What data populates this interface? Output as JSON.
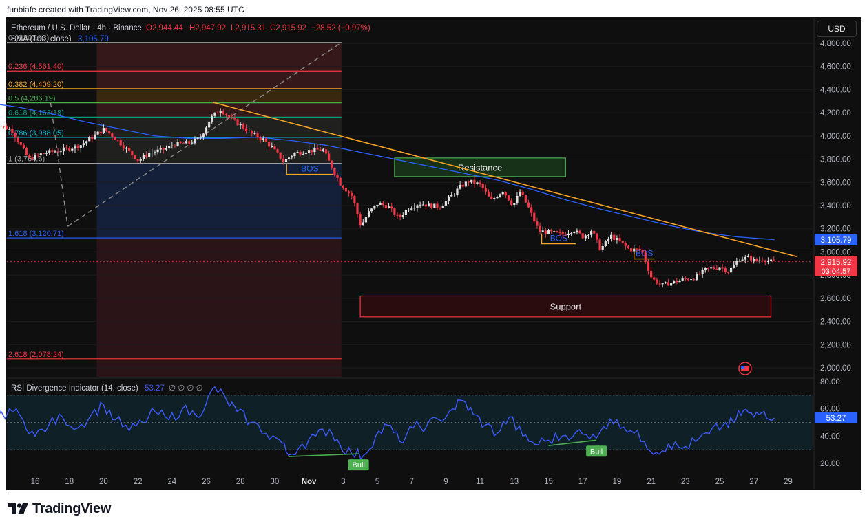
{
  "attribution": "funbiafe created with TradingView.com, Nov 26, 2025 08:55 UTC",
  "brand": "TradingView",
  "currency_button": "USD",
  "legend": {
    "symbol": "Ethereum / U.S. Dollar · 4h · Binance",
    "open": "O2,944.44",
    "high": "H2,947.92",
    "low": "L2,915.31",
    "close": "C2,915.92",
    "change": "−28.52 (−0.97%)",
    "sma_label": "SMA (100, close)",
    "sma_value": "3,105.79"
  },
  "rsi_legend": {
    "label": "RSI Divergence Indicator (14, close)",
    "value": "53.27",
    "extras": "∅ ∅ ∅ ∅"
  },
  "price_badges": {
    "sma": "3,105.79",
    "last": "2,915.92",
    "countdown": "03:04:57",
    "rsi": "53.27"
  },
  "colors": {
    "up": "#e0e0e0",
    "down": "#f23645",
    "sma": "#2962ff",
    "rsi": "#3d5afe",
    "trend": "#f7a325",
    "bull": "#4caf50"
  },
  "chart_data": [
    {
      "type": "candlestick",
      "title": "Ethereum / U.S. Dollar · 4h · Binance",
      "x_tick_labels": [
        "16",
        "18",
        "20",
        "22",
        "24",
        "26",
        "28",
        "30",
        "Nov",
        "3",
        "5",
        "7",
        "9",
        "11",
        "13",
        "15",
        "17",
        "19",
        "21",
        "23",
        "25",
        "27",
        "29"
      ],
      "y_tick_labels": [
        "4,800.00",
        "4,600.00",
        "4,400.00",
        "4,200.00",
        "4,000.00",
        "3,800.00",
        "3,600.00",
        "3,400.00",
        "3,200.00",
        "3,000.00",
        "2,800.00",
        "2,600.00",
        "2,400.00",
        "2,200.00",
        "2,000.00"
      ],
      "ylim": [
        1920,
        4890
      ],
      "price_path": [
        {
          "d": 13.5,
          "p": 4130
        },
        {
          "d": 14.8,
          "p": 4050
        },
        {
          "d": 15.8,
          "p": 3800
        },
        {
          "d": 16.6,
          "p": 3850
        },
        {
          "d": 17.8,
          "p": 3880
        },
        {
          "d": 18.8,
          "p": 3920
        },
        {
          "d": 19.8,
          "p": 4020
        },
        {
          "d": 20.2,
          "p": 4060
        },
        {
          "d": 21.0,
          "p": 3960
        },
        {
          "d": 21.4,
          "p": 3900
        },
        {
          "d": 22.2,
          "p": 3790
        },
        {
          "d": 22.8,
          "p": 3850
        },
        {
          "d": 23.8,
          "p": 3890
        },
        {
          "d": 24.3,
          "p": 3930
        },
        {
          "d": 25.2,
          "p": 3940
        },
        {
          "d": 25.8,
          "p": 3980
        },
        {
          "d": 26.4,
          "p": 4150
        },
        {
          "d": 27.0,
          "p": 4230
        },
        {
          "d": 27.5,
          "p": 4160
        },
        {
          "d": 28.2,
          "p": 4090
        },
        {
          "d": 28.8,
          "p": 4020
        },
        {
          "d": 29.5,
          "p": 3970
        },
        {
          "d": 30.0,
          "p": 3900
        },
        {
          "d": 30.7,
          "p": 3780
        },
        {
          "d": 31.3,
          "p": 3850
        },
        {
          "d": 32.0,
          "p": 3870
        },
        {
          "d": 32.6,
          "p": 3880
        },
        {
          "d": 33.0,
          "p": 3880
        },
        {
          "d": 33.4,
          "p": 3760
        },
        {
          "d": 34.0,
          "p": 3590
        },
        {
          "d": 34.7,
          "p": 3480
        },
        {
          "d": 35.2,
          "p": 3220
        },
        {
          "d": 35.6,
          "p": 3330
        },
        {
          "d": 36.2,
          "p": 3420
        },
        {
          "d": 36.8,
          "p": 3390
        },
        {
          "d": 37.4,
          "p": 3290
        },
        {
          "d": 38.0,
          "p": 3380
        },
        {
          "d": 38.6,
          "p": 3420
        },
        {
          "d": 39.2,
          "p": 3400
        },
        {
          "d": 39.8,
          "p": 3390
        },
        {
          "d": 40.4,
          "p": 3470
        },
        {
          "d": 41.0,
          "p": 3560
        },
        {
          "d": 41.5,
          "p": 3610
        },
        {
          "d": 42.2,
          "p": 3580
        },
        {
          "d": 42.8,
          "p": 3440
        },
        {
          "d": 43.5,
          "p": 3530
        },
        {
          "d": 44.1,
          "p": 3400
        },
        {
          "d": 44.5,
          "p": 3520
        },
        {
          "d": 45.0,
          "p": 3380
        },
        {
          "d": 45.6,
          "p": 3180
        },
        {
          "d": 46.2,
          "p": 3170
        },
        {
          "d": 47.0,
          "p": 3150
        },
        {
          "d": 47.6,
          "p": 3190
        },
        {
          "d": 48.2,
          "p": 3130
        },
        {
          "d": 48.7,
          "p": 3190
        },
        {
          "d": 49.2,
          "p": 3020
        },
        {
          "d": 49.8,
          "p": 3140
        },
        {
          "d": 50.4,
          "p": 3080
        },
        {
          "d": 50.9,
          "p": 3020
        },
        {
          "d": 51.6,
          "p": 3020
        },
        {
          "d": 52.2,
          "p": 2770
        },
        {
          "d": 52.8,
          "p": 2710
        },
        {
          "d": 53.4,
          "p": 2740
        },
        {
          "d": 54.0,
          "p": 2760
        },
        {
          "d": 54.7,
          "p": 2780
        },
        {
          "d": 55.4,
          "p": 2850
        },
        {
          "d": 56.2,
          "p": 2870
        },
        {
          "d": 56.7,
          "p": 2830
        },
        {
          "d": 57.3,
          "p": 2940
        },
        {
          "d": 57.9,
          "p": 2950
        },
        {
          "d": 58.3,
          "p": 2920
        },
        {
          "d": 58.7,
          "p": 2940
        },
        {
          "d": 59.2,
          "p": 2916
        }
      ],
      "sma_100": [
        {
          "d": 13.5,
          "p": 4280
        },
        {
          "d": 15.0,
          "p": 4250
        },
        {
          "d": 17.0,
          "p": 4190
        },
        {
          "d": 19.0,
          "p": 4120
        },
        {
          "d": 21.0,
          "p": 4060
        },
        {
          "d": 23.0,
          "p": 4000
        },
        {
          "d": 25.0,
          "p": 3980
        },
        {
          "d": 27.0,
          "p": 3980
        },
        {
          "d": 29.0,
          "p": 3990
        },
        {
          "d": 31.0,
          "p": 3960
        },
        {
          "d": 33.0,
          "p": 3920
        },
        {
          "d": 35.0,
          "p": 3860
        },
        {
          "d": 37.0,
          "p": 3800
        },
        {
          "d": 39.0,
          "p": 3740
        },
        {
          "d": 41.0,
          "p": 3680
        },
        {
          "d": 43.0,
          "p": 3620
        },
        {
          "d": 45.0,
          "p": 3540
        },
        {
          "d": 47.0,
          "p": 3450
        },
        {
          "d": 49.0,
          "p": 3370
        },
        {
          "d": 51.0,
          "p": 3300
        },
        {
          "d": 53.0,
          "p": 3230
        },
        {
          "d": 55.0,
          "p": 3170
        },
        {
          "d": 57.0,
          "p": 3130
        },
        {
          "d": 59.2,
          "p": 3106
        }
      ],
      "fibonacci": [
        {
          "label": "0 (4,807.43)",
          "price": 4807.43,
          "color": "#9e9e9e"
        },
        {
          "label": "0.236 (4,561.40)",
          "price": 4561.4,
          "color": "#f23645"
        },
        {
          "label": "0.382 (4,409.20)",
          "price": 4409.2,
          "color": "#f7a325"
        },
        {
          "label": "0.5 (4,286.19)",
          "price": 4286.19,
          "color": "#4caf50"
        },
        {
          "label": "0.618 (4,163.18)",
          "price": 4163.18,
          "color": "#089981"
        },
        {
          "label": "0.786 (3,988.05)",
          "price": 3988.05,
          "color": "#00bcd4"
        },
        {
          "label": "1 (3,764.6)",
          "price": 3764.6,
          "color": "#9e9e9e"
        },
        {
          "label": "1.618 (3,120.71)",
          "price": 3120.71,
          "color": "#2962ff"
        },
        {
          "label": "2.618 (2,078.24)",
          "price": 2078.24,
          "color": "#f23645"
        }
      ],
      "zones": [
        {
          "label": "Resistance",
          "from_day": 37.0,
          "to_day": 47.0,
          "low": 3650,
          "high": 3810
        },
        {
          "label": "Support",
          "from_day": 35.0,
          "to_day": 59.0,
          "low": 2440,
          "high": 2620
        }
      ],
      "bos_labels": [
        "BOS",
        "BOS",
        "BOS"
      ],
      "trendline": {
        "from": {
          "d": 26.4,
          "p": 4290
        },
        "to": {
          "d": 60.5,
          "p": 2960
        }
      },
      "last_price": 2915.92,
      "sma_last": 3105.79
    },
    {
      "type": "line",
      "title": "RSI Divergence Indicator (14, close)",
      "y_tick_labels": [
        "80.00",
        "60.00",
        "40.00",
        "20.00"
      ],
      "ylim": [
        15,
        85
      ],
      "levels": [
        70,
        50,
        30
      ],
      "rsi_path": [
        {
          "d": 13.5,
          "v": 48
        },
        {
          "d": 14.5,
          "v": 60
        },
        {
          "d": 15.3,
          "v": 52
        },
        {
          "d": 16.0,
          "v": 40
        },
        {
          "d": 16.8,
          "v": 48
        },
        {
          "d": 17.6,
          "v": 54
        },
        {
          "d": 18.5,
          "v": 46
        },
        {
          "d": 19.3,
          "v": 56
        },
        {
          "d": 20.0,
          "v": 63
        },
        {
          "d": 20.7,
          "v": 52
        },
        {
          "d": 21.5,
          "v": 44
        },
        {
          "d": 22.3,
          "v": 50
        },
        {
          "d": 23.0,
          "v": 58
        },
        {
          "d": 23.8,
          "v": 52
        },
        {
          "d": 24.6,
          "v": 60
        },
        {
          "d": 25.4,
          "v": 55
        },
        {
          "d": 26.0,
          "v": 64
        },
        {
          "d": 26.5,
          "v": 76
        },
        {
          "d": 27.2,
          "v": 66
        },
        {
          "d": 27.8,
          "v": 58
        },
        {
          "d": 28.6,
          "v": 50
        },
        {
          "d": 29.5,
          "v": 42
        },
        {
          "d": 30.3,
          "v": 37
        },
        {
          "d": 30.8,
          "v": 26
        },
        {
          "d": 31.6,
          "v": 34
        },
        {
          "d": 32.4,
          "v": 40
        },
        {
          "d": 33.2,
          "v": 45
        },
        {
          "d": 33.8,
          "v": 34
        },
        {
          "d": 34.5,
          "v": 27
        },
        {
          "d": 35.2,
          "v": 26
        },
        {
          "d": 35.9,
          "v": 40
        },
        {
          "d": 36.6,
          "v": 48
        },
        {
          "d": 37.3,
          "v": 36
        },
        {
          "d": 38.1,
          "v": 46
        },
        {
          "d": 38.9,
          "v": 48
        },
        {
          "d": 39.6,
          "v": 52
        },
        {
          "d": 40.4,
          "v": 60
        },
        {
          "d": 41.0,
          "v": 66
        },
        {
          "d": 41.6,
          "v": 56
        },
        {
          "d": 42.3,
          "v": 48
        },
        {
          "d": 43.0,
          "v": 42
        },
        {
          "d": 43.7,
          "v": 54
        },
        {
          "d": 44.5,
          "v": 40
        },
        {
          "d": 45.2,
          "v": 34
        },
        {
          "d": 46.0,
          "v": 37
        },
        {
          "d": 46.8,
          "v": 40
        },
        {
          "d": 47.6,
          "v": 43
        },
        {
          "d": 48.4,
          "v": 38
        },
        {
          "d": 49.2,
          "v": 47
        },
        {
          "d": 50.0,
          "v": 52
        },
        {
          "d": 50.8,
          "v": 44
        },
        {
          "d": 51.6,
          "v": 36
        },
        {
          "d": 52.3,
          "v": 28
        },
        {
          "d": 53.0,
          "v": 34
        },
        {
          "d": 53.8,
          "v": 31
        },
        {
          "d": 54.6,
          "v": 36
        },
        {
          "d": 55.4,
          "v": 42
        },
        {
          "d": 56.2,
          "v": 48
        },
        {
          "d": 56.8,
          "v": 50
        },
        {
          "d": 57.4,
          "v": 59
        },
        {
          "d": 58.0,
          "v": 54
        },
        {
          "d": 58.6,
          "v": 58
        },
        {
          "d": 59.2,
          "v": 53.27
        }
      ],
      "divergences": [
        {
          "label": "Bull",
          "from": {
            "d": 30.8,
            "v": 25
          },
          "to": {
            "d": 34.9,
            "v": 27
          }
        },
        {
          "label": "Bull",
          "from": {
            "d": 46.0,
            "v": 33
          },
          "to": {
            "d": 48.8,
            "v": 37
          }
        }
      ],
      "last_value": 53.27
    }
  ]
}
